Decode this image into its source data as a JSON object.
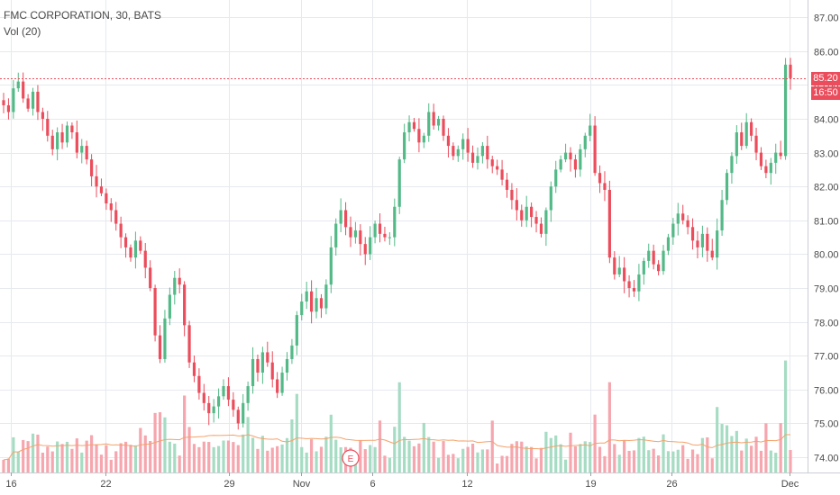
{
  "header": {
    "symbol_line": "FMC CORPORATION, 30, BATS",
    "volume_line": "Vol (20)"
  },
  "price_tag": {
    "price": "85.20",
    "time": "16:50"
  },
  "event_marker": {
    "label": "E"
  },
  "chart_data": {
    "type": "candlestick",
    "title": "FMC CORPORATION, 30, BATS",
    "ylim": [
      73.6,
      87.2
    ],
    "y_ticks": [
      "74.00",
      "75.00",
      "76.00",
      "77.00",
      "78.00",
      "79.00",
      "80.00",
      "81.00",
      "82.00",
      "83.00",
      "84.00",
      "85.00",
      "86.00",
      "87.00"
    ],
    "x_ticks": [
      "16",
      "22",
      "29",
      "Nov",
      "6",
      "12",
      "19",
      "26",
      "Dec"
    ],
    "grid": true,
    "last_price_line": 85.2,
    "colors": {
      "up": "#53b987",
      "down": "#eb4d5c",
      "up_vol": "#a6dcc3",
      "down_vol": "#f5a6ae",
      "ma": "#f4a26b",
      "grid": "#e6e9ee"
    },
    "closes": [
      84.4,
      84.2,
      84.9,
      85.1,
      84.6,
      84.3,
      84.8,
      84.2,
      84.0,
      83.5,
      83.1,
      83.6,
      83.3,
      83.8,
      83.6,
      83.0,
      83.2,
      82.8,
      82.3,
      82.0,
      81.8,
      81.5,
      81.3,
      80.9,
      80.5,
      80.2,
      79.9,
      80.4,
      80.1,
      79.6,
      79.0,
      77.6,
      76.9,
      78.1,
      78.8,
      79.3,
      79.1,
      77.9,
      76.8,
      76.4,
      75.9,
      75.6,
      75.3,
      75.5,
      75.8,
      76.1,
      75.7,
      75.4,
      75.0,
      75.6,
      76.1,
      76.9,
      76.5,
      77.1,
      76.8,
      76.3,
      75.9,
      76.5,
      76.9,
      77.3,
      78.2,
      78.6,
      78.9,
      78.3,
      78.7,
      78.4,
      79.1,
      80.2,
      80.9,
      81.3,
      80.8,
      80.5,
      80.7,
      80.3,
      80.0,
      80.5,
      80.9,
      80.6,
      80.5,
      80.5,
      81.4,
      82.8,
      83.6,
      83.9,
      83.7,
      83.3,
      83.5,
      84.2,
      83.8,
      84.0,
      83.5,
      83.2,
      82.9,
      83.1,
      83.4,
      83.0,
      82.7,
      82.9,
      83.2,
      82.8,
      82.6,
      82.5,
      82.2,
      81.9,
      81.6,
      81.3,
      81.0,
      81.4,
      81.1,
      80.9,
      80.6,
      81.3,
      82.0,
      82.5,
      82.8,
      83.0,
      82.8,
      82.5,
      83.1,
      83.5,
      83.8,
      82.4,
      82.1,
      81.9,
      79.9,
      79.4,
      79.6,
      79.2,
      79.0,
      78.9,
      79.4,
      79.8,
      80.1,
      79.7,
      79.5,
      80.1,
      80.5,
      80.9,
      81.2,
      81.0,
      80.8,
      80.4,
      80.2,
      80.6,
      80.1,
      79.9,
      80.7,
      81.6,
      82.4,
      82.9,
      83.6,
      83.2,
      83.9,
      83.5,
      83.0,
      82.6,
      82.4,
      82.7,
      83.0,
      82.9,
      85.6,
      85.2
    ],
    "volume_ma_label": "Vol (20)"
  }
}
